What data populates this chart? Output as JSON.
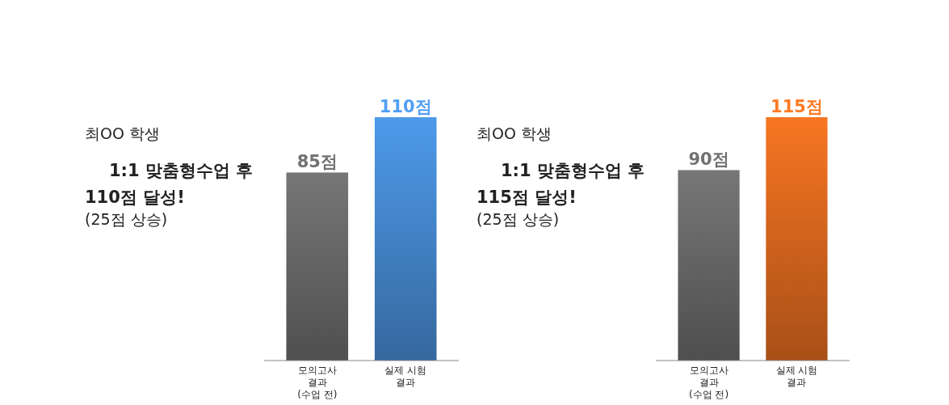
{
  "chart_data": [
    {
      "type": "bar",
      "annotations": [
        "최OO 학생",
        "1:1 맞춤형수업 후",
        "110점 달성!",
        "(25점 상승)"
      ],
      "categories": [
        "모의고사\n결과\n(수업 전)",
        "실제 시험\n결과"
      ],
      "values": [
        85,
        110
      ],
      "value_labels": [
        "85점",
        "110점"
      ],
      "colors": [
        "#5f5f5f",
        "#3f7cbd"
      ],
      "tick_labels": "x"
    },
    {
      "type": "bar",
      "annotations": [
        "최OO 학생",
        "1:1 맞춤형수업 후",
        "115점 달성!",
        "(25점 상승)"
      ],
      "categories": [
        "모의고사\n결과\n(수업 전)",
        "실제 시험\n결과"
      ],
      "values": [
        90,
        115
      ],
      "value_labels": [
        "90점",
        "115점"
      ],
      "colors": [
        "#5f5f5f",
        "#c85f1c"
      ],
      "tick_labels": "x"
    }
  ]
}
